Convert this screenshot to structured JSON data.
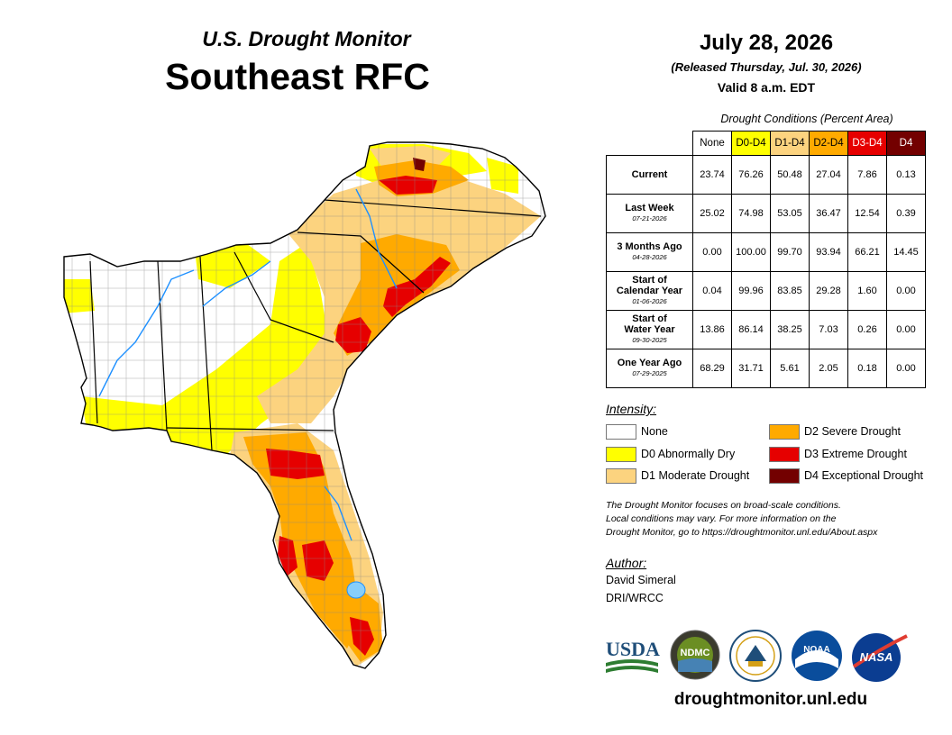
{
  "header": {
    "subtitle": "U.S. Drought Monitor",
    "title": "Southeast RFC"
  },
  "date": {
    "map_date": "July 28, 2026",
    "released": "(Released Thursday, Jul. 30, 2026)",
    "valid": "Valid 8 a.m. EDT"
  },
  "table": {
    "title": "Drought Conditions (Percent Area)",
    "columns": [
      {
        "label": "None",
        "color": "#ffffff",
        "text_color": "#000000"
      },
      {
        "label": "D0-D4",
        "color": "#ffff00",
        "text_color": "#000000"
      },
      {
        "label": "D1-D4",
        "color": "#fcd37f",
        "text_color": "#000000"
      },
      {
        "label": "D2-D4",
        "color": "#ffaa00",
        "text_color": "#000000"
      },
      {
        "label": "D3-D4",
        "color": "#e60000",
        "text_color": "#ffffff"
      },
      {
        "label": "D4",
        "color": "#730000",
        "text_color": "#ffffff"
      }
    ],
    "rows": [
      {
        "label": "Current",
        "label2": "",
        "date": "",
        "values": [
          "23.74",
          "76.26",
          "50.48",
          "27.04",
          "7.86",
          "0.13"
        ]
      },
      {
        "label": "Last Week",
        "label2": "",
        "date": "07-21-2026",
        "values": [
          "25.02",
          "74.98",
          "53.05",
          "36.47",
          "12.54",
          "0.39"
        ]
      },
      {
        "label": "3 Months Ago",
        "label2": "",
        "date": "04-28-2026",
        "values": [
          "0.00",
          "100.00",
          "99.70",
          "93.94",
          "66.21",
          "14.45"
        ]
      },
      {
        "label": "Start of",
        "label2": "Calendar Year",
        "date": "01-06-2026",
        "values": [
          "0.04",
          "99.96",
          "83.85",
          "29.28",
          "1.60",
          "0.00"
        ]
      },
      {
        "label": "Start of",
        "label2": "Water Year",
        "date": "09-30-2025",
        "values": [
          "13.86",
          "86.14",
          "38.25",
          "7.03",
          "0.26",
          "0.00"
        ]
      },
      {
        "label": "One Year Ago",
        "label2": "",
        "date": "07-29-2025",
        "values": [
          "68.29",
          "31.71",
          "5.61",
          "2.05",
          "0.18",
          "0.00"
        ]
      }
    ]
  },
  "legend": {
    "title": "Intensity:",
    "items": [
      {
        "label": "None",
        "color": "#ffffff"
      },
      {
        "label": "D0 Abnormally Dry",
        "color": "#ffff00"
      },
      {
        "label": "D1 Moderate Drought",
        "color": "#fcd37f"
      },
      {
        "label": "D2 Severe Drought",
        "color": "#ffaa00"
      },
      {
        "label": "D3 Extreme Drought",
        "color": "#e60000"
      },
      {
        "label": "D4 Exceptional Drought",
        "color": "#730000"
      }
    ]
  },
  "note": {
    "line1": "The Drought Monitor focuses on broad-scale conditions.",
    "line2": "Local conditions may vary. For more information on the",
    "line3": "Drought Monitor, go to https://droughtmonitor.unl.edu/About.aspx"
  },
  "author": {
    "title": "Author:",
    "name": "David Simeral",
    "org": "DRI/WRCC"
  },
  "logos": {
    "usda": "USDA",
    "ndmc": "NDMC",
    "noaa": "NOAA",
    "nasa": "NASA"
  },
  "footer": {
    "url": "droughtmonitor.unl.edu"
  }
}
